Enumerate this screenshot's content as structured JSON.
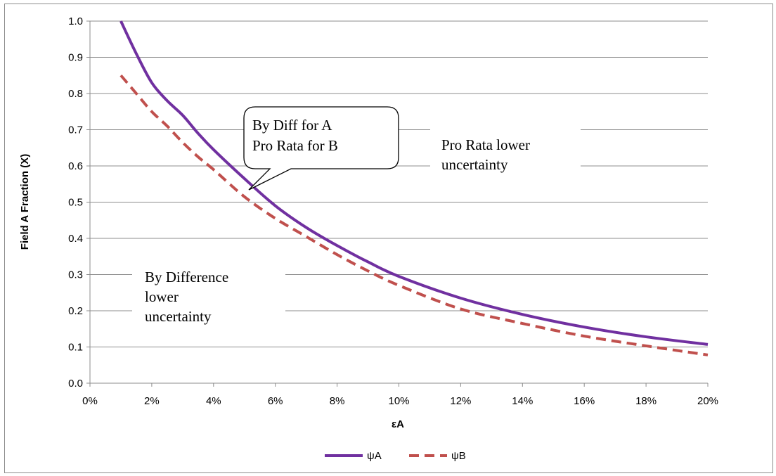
{
  "chart_data": {
    "type": "line",
    "xlabel": "εA",
    "ylabel": "Field A Fraction (X)",
    "xlim": [
      0,
      0.2
    ],
    "ylim": [
      0,
      1.0
    ],
    "x_ticks": [
      "0%",
      "2%",
      "4%",
      "6%",
      "8%",
      "10%",
      "12%",
      "14%",
      "16%",
      "18%",
      "20%"
    ],
    "y_ticks": [
      "0.0",
      "0.1",
      "0.2",
      "0.3",
      "0.4",
      "0.5",
      "0.6",
      "0.7",
      "0.8",
      "0.9",
      "1.0"
    ],
    "grid": "horizontal",
    "legend_position": "bottom",
    "series": [
      {
        "name": "ψA",
        "color": "#7030a0",
        "style": "solid",
        "x": [
          0.01,
          0.015,
          0.02,
          0.025,
          0.03,
          0.035,
          0.04,
          0.05,
          0.06,
          0.07,
          0.08,
          0.09,
          0.1,
          0.12,
          0.14,
          0.16,
          0.18,
          0.2
        ],
        "y": [
          1.0,
          0.91,
          0.83,
          0.78,
          0.74,
          0.69,
          0.645,
          0.565,
          0.49,
          0.43,
          0.38,
          0.335,
          0.295,
          0.235,
          0.19,
          0.155,
          0.128,
          0.107
        ]
      },
      {
        "name": "ψB",
        "color": "#c0504d",
        "style": "dashed",
        "x": [
          0.01,
          0.015,
          0.02,
          0.025,
          0.03,
          0.035,
          0.04,
          0.05,
          0.06,
          0.07,
          0.08,
          0.09,
          0.1,
          0.12,
          0.14,
          0.16,
          0.18,
          0.2
        ],
        "y": [
          0.85,
          0.8,
          0.75,
          0.71,
          0.665,
          0.625,
          0.59,
          0.515,
          0.455,
          0.405,
          0.355,
          0.31,
          0.27,
          0.205,
          0.165,
          0.13,
          0.103,
          0.078
        ]
      }
    ],
    "annotations": [
      {
        "lines": [
          "By Diff for A",
          "Pro Rata for B"
        ],
        "callout": true
      },
      {
        "lines": [
          "Pro Rata lower",
          "uncertainty"
        ],
        "callout": false
      },
      {
        "lines": [
          "By Difference",
          "lower",
          "uncertainty"
        ],
        "callout": false
      }
    ]
  }
}
